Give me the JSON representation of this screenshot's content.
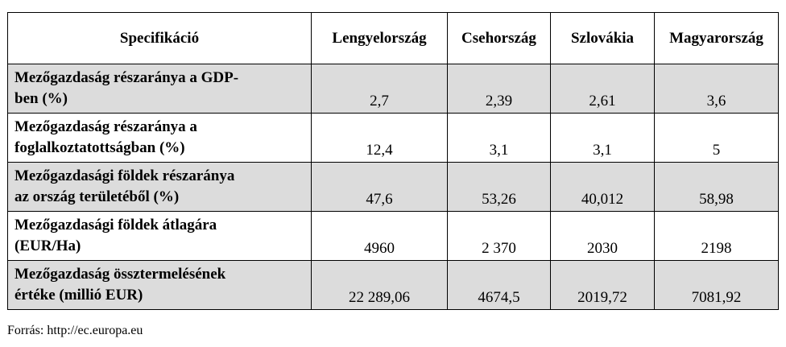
{
  "table": {
    "headers": [
      "Specifikáció",
      "Lengyelország",
      "Csehország",
      "Szlovákia",
      "Magyarország"
    ],
    "rows": [
      {
        "label_line1": "Mezőgazdaság részaránya a GDP-",
        "label_line2": "ben (%)",
        "values": [
          "2,7",
          "2,39",
          "2,61",
          "3,6"
        ]
      },
      {
        "label_line1": "Mezőgazdaság részaránya a",
        "label_line2": "foglalkoztatottságban (%)",
        "values": [
          "12,4",
          "3,1",
          "3,1",
          "5"
        ]
      },
      {
        "label_line1": "Mezőgazdasági földek részaránya",
        "label_line2": "az ország területéből (%)",
        "values": [
          "47,6",
          "53,26",
          "40,012",
          "58,98"
        ]
      },
      {
        "label_line1": "Mezőgazdasági földek átlagára",
        "label_line2": "(EUR/Ha)",
        "values": [
          "4960",
          "2 370",
          "2030",
          "2198"
        ]
      },
      {
        "label_line1": "Mezőgazdaság össztermelésének",
        "label_line2": "értéke (millió EUR)",
        "values": [
          "22 289,06",
          "4674,5",
          "2019,72",
          "7081,92"
        ]
      }
    ],
    "shaded_color": "#dcdcdc"
  },
  "source": "Forrás: http://ec.europa.eu"
}
